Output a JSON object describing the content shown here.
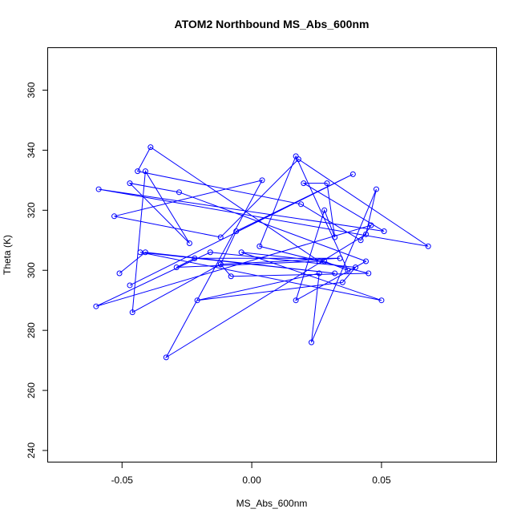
{
  "chart_data": {
    "type": "line",
    "title": "ATOM2 Northbound MS_Abs_600nm",
    "xlabel": "MS_Abs_600nm",
    "ylabel": "Theta (K)",
    "xlim": [
      -0.0785,
      0.0945
    ],
    "ylim": [
      236,
      374
    ],
    "xticks": [
      -0.05,
      0.0,
      0.05
    ],
    "xtick_labels": [
      "-0.05",
      "0.00",
      "0.05"
    ],
    "yticks": [
      240,
      260,
      280,
      300,
      320,
      340,
      360
    ],
    "ytick_labels": [
      "240",
      "260",
      "280",
      "300",
      "320",
      "340",
      "360"
    ],
    "grid": false,
    "legend": "none",
    "colors": {
      "series": "#0000ff"
    },
    "series": [
      {
        "x": [
          -0.051,
          -0.041,
          0.032,
          -0.043,
          0.05,
          -0.004,
          0.028,
          0.037,
          0.017,
          0.003,
          0.045,
          -0.008,
          -0.012,
          0.034,
          -0.022,
          -0.029,
          0.026,
          -0.039,
          -0.044,
          0.019,
          0.042,
          0.046,
          -0.06,
          -0.016,
          0.04,
          0.035,
          -0.021,
          0.026,
          0.023,
          0.048,
          0.044,
          -0.033,
          0.004,
          -0.053,
          -0.012,
          0.018,
          0.068,
          -0.059,
          0.051,
          0.02,
          0.029,
          0.032,
          0.028,
          0.017,
          0.044,
          -0.028,
          -0.047,
          -0.024,
          -0.041,
          -0.046,
          -0.012,
          -0.006,
          0.039,
          -0.047
        ],
        "y": [
          299,
          306,
          299,
          306,
          290,
          306,
          303,
          300,
          338,
          308,
          299,
          298,
          302,
          304,
          304,
          301,
          303,
          341,
          333,
          322,
          310,
          315,
          288,
          306,
          301,
          296,
          290,
          299,
          276,
          327,
          312,
          271,
          330,
          318,
          311,
          337,
          308,
          327,
          313,
          329,
          329,
          311,
          320,
          290,
          303,
          326,
          329,
          309,
          333,
          286,
          302,
          313,
          332,
          295
        ]
      }
    ]
  }
}
